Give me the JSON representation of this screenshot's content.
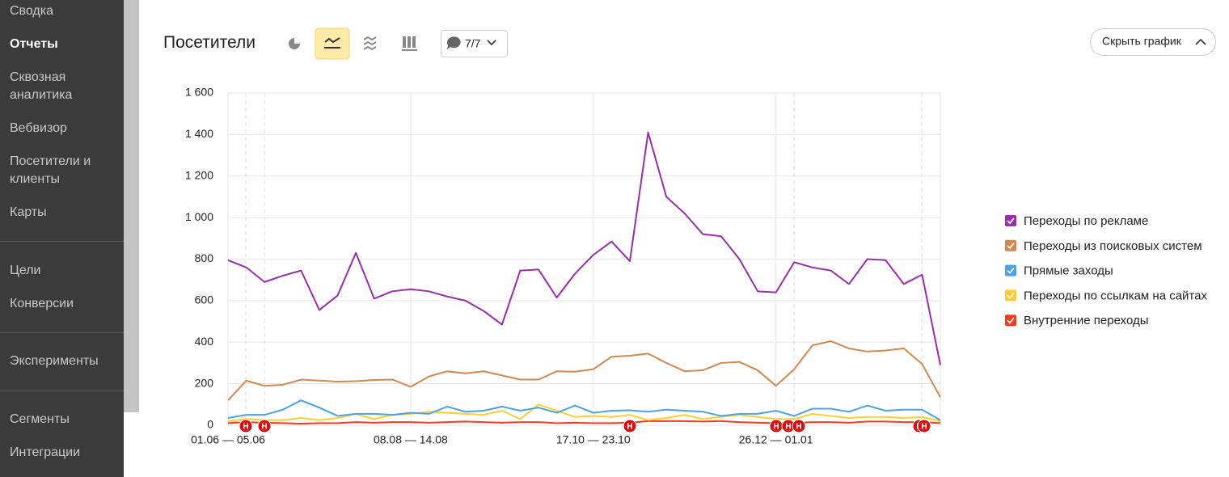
{
  "sidebar": {
    "items": [
      "Сводка",
      "Отчеты",
      "Сквозная аналитика",
      "Вебвизор",
      "Посетители и клиенты",
      "Карты",
      "Цели",
      "Конверсии",
      "Эксперименты",
      "Сегменты",
      "Интеграции"
    ]
  },
  "header": {
    "title": "Посетители",
    "comments": "7/7",
    "hide_button": "Скрыть график"
  },
  "chart_data": {
    "type": "line",
    "categories": [
      "01.06 — 05.06",
      null,
      null,
      null,
      null,
      null,
      null,
      null,
      null,
      null,
      "08.08 — 14.08",
      null,
      null,
      null,
      null,
      null,
      null,
      null,
      null,
      null,
      "17.10 — 23.10",
      null,
      null,
      null,
      null,
      null,
      null,
      null,
      null,
      null,
      "26.12 — 01.01",
      null,
      null,
      null,
      null,
      null,
      null,
      null,
      null,
      null
    ],
    "ylim": [
      0,
      1600
    ],
    "yticks": [
      0,
      200,
      400,
      600,
      800,
      {
        "value": 1000,
        "label": "1 000"
      },
      {
        "value": 1200,
        "label": "1 200"
      },
      {
        "value": 1400,
        "label": "1 400"
      },
      {
        "value": 1600,
        "label": "1 600"
      }
    ],
    "grid": true,
    "legend": "right",
    "series": [
      {
        "name": "Переходы по рекламе",
        "color": "#9a2ead",
        "values": [
          795,
          760,
          690,
          720,
          745,
          555,
          625,
          830,
          610,
          645,
          655,
          645,
          620,
          600,
          550,
          485,
          745,
          750,
          615,
          730,
          820,
          885,
          790,
          1410,
          1100,
          1020,
          920,
          910,
          800,
          645,
          640,
          785,
          760,
          745,
          680,
          800,
          795,
          680,
          725,
          290
        ]
      },
      {
        "name": "Переходы из поисковых систем",
        "color": "#d4884f",
        "values": [
          120,
          215,
          190,
          195,
          220,
          215,
          210,
          212,
          218,
          220,
          185,
          235,
          260,
          250,
          260,
          240,
          220,
          220,
          260,
          258,
          270,
          330,
          335,
          345,
          300,
          260,
          265,
          300,
          305,
          265,
          190,
          270,
          385,
          405,
          370,
          355,
          360,
          370,
          295,
          135
        ]
      },
      {
        "name": "Прямые заходы",
        "color": "#4aa3e8",
        "values": [
          35,
          50,
          50,
          75,
          120,
          85,
          45,
          55,
          55,
          50,
          60,
          55,
          90,
          65,
          70,
          90,
          70,
          85,
          60,
          95,
          60,
          70,
          72,
          65,
          75,
          70,
          65,
          45,
          55,
          55,
          70,
          45,
          80,
          80,
          65,
          95,
          70,
          75,
          75,
          25
        ]
      },
      {
        "name": "Переходы по ссылкам на сайтах",
        "color": "#ffcc33",
        "values": [
          20,
          30,
          25,
          25,
          35,
          25,
          35,
          55,
          30,
          50,
          55,
          65,
          60,
          55,
          50,
          70,
          30,
          100,
          70,
          40,
          45,
          40,
          50,
          25,
          35,
          50,
          30,
          40,
          50,
          40,
          30,
          30,
          55,
          45,
          35,
          40,
          40,
          35,
          40,
          20
        ]
      },
      {
        "name": "Внутренние переходы",
        "color": "#f03c1f",
        "values": [
          10,
          15,
          12,
          10,
          8,
          10,
          10,
          15,
          12,
          15,
          15,
          12,
          15,
          18,
          15,
          12,
          15,
          15,
          10,
          12,
          10,
          10,
          12,
          20,
          20,
          20,
          18,
          20,
          15,
          12,
          10,
          12,
          15,
          15,
          12,
          18,
          18,
          15,
          15,
          10
        ]
      }
    ],
    "annotation_markers": [
      "Н",
      "Н",
      "Н",
      "Н",
      "Н",
      "Н",
      "Н",
      "Н"
    ]
  }
}
